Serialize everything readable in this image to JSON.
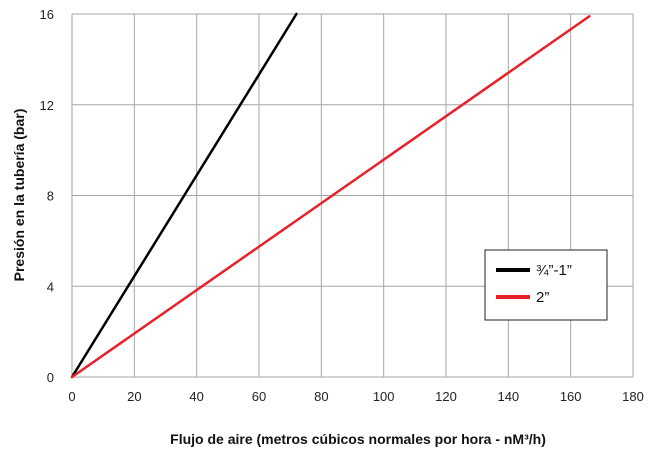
{
  "chart_data": {
    "type": "line",
    "title": "",
    "xlabel": "Flujo de aire (metros cúbicos normales por hora - nM³/h)",
    "ylabel": "Presión en la tubería (bar)",
    "xlim": [
      0,
      180
    ],
    "ylim": [
      0,
      16
    ],
    "xticks": [
      0,
      20,
      40,
      60,
      80,
      100,
      120,
      140,
      160,
      180
    ],
    "yticks": [
      0,
      4,
      8,
      12,
      16
    ],
    "xtick_labels": [
      "0",
      "20",
      "40",
      "60",
      "80",
      "100",
      "120",
      "140",
      "160",
      "180"
    ],
    "ytick_labels": [
      "0",
      "4",
      "8",
      "12",
      "16"
    ],
    "grid": true,
    "legend_position": "right",
    "series": [
      {
        "name": "¾”-1”",
        "color": "#000000",
        "x": [
          0,
          72
        ],
        "y": [
          0,
          16
        ]
      },
      {
        "name": "2”",
        "color": "#e8202a",
        "x": [
          0,
          166
        ],
        "y": [
          0,
          15.9
        ]
      }
    ]
  }
}
